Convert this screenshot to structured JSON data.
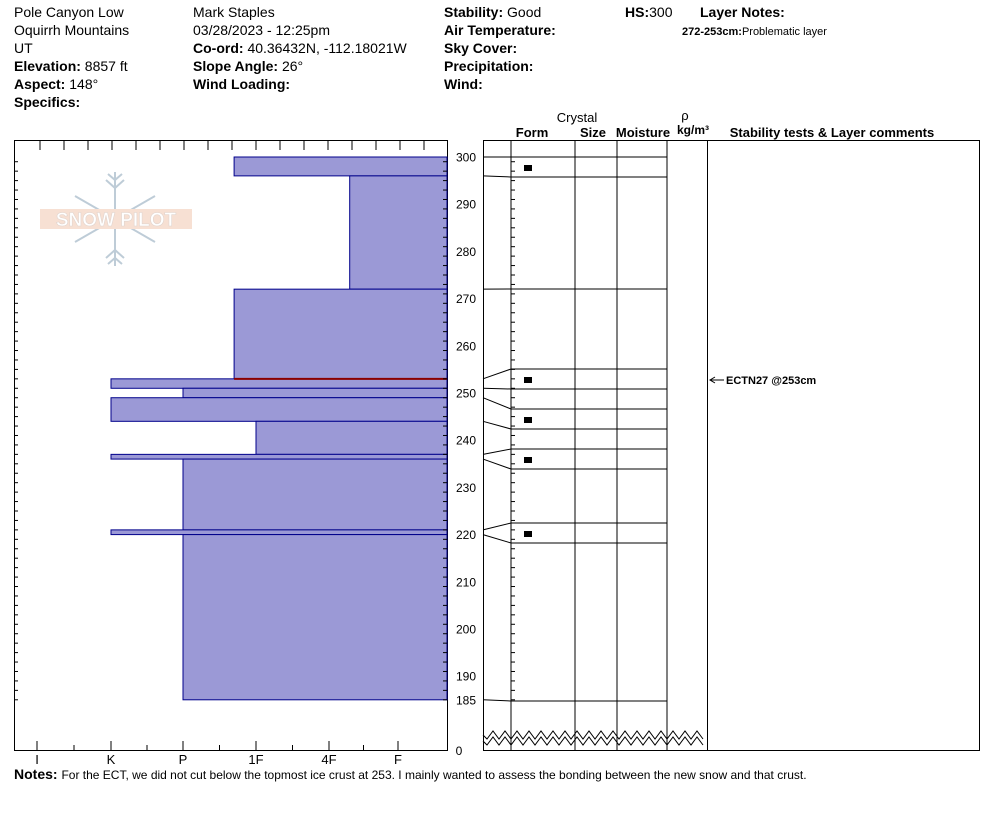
{
  "header": {
    "location": "Pole Canyon Low",
    "range": "Oquirrh Mountains",
    "state": "UT",
    "elevation_label": "Elevation:",
    "elevation": "8857 ft",
    "aspect_label": "Aspect:",
    "aspect": "148°",
    "specifics_label": "Specifics:",
    "observer": "Mark Staples",
    "datetime": "03/28/2023 - 12:25pm",
    "coord_label": "Co-ord:",
    "coord": "40.36432N, -112.18021W",
    "slope_label": "Slope Angle:",
    "slope": "26°",
    "wind_loading_label": "Wind Loading:",
    "stability_label": "Stability:",
    "stability": "Good",
    "air_temp_label": "Air Temperature:",
    "sky_label": "Sky Cover:",
    "precip_label": "Precipitation:",
    "wind_label": "Wind:",
    "hs_label": "HS:",
    "hs": "300",
    "layer_notes_label": "Layer Notes:",
    "layer_note_range": "272-253cm:",
    "layer_note_text": "Problematic layer"
  },
  "logo": {
    "text": "SNOW PILOT"
  },
  "columns": {
    "crystal": "Crystal",
    "form": "Form",
    "size": "Size",
    "moisture": "Moisture",
    "rho": "ρ",
    "density_unit": "kg/m³",
    "stability_comments": "Stability tests & Layer comments"
  },
  "notes": {
    "label": "Notes:",
    "text": "For the ECT, we did not cut below the topmost ice crust at 253. I mainly wanted to assess the bonding between the new snow and that crust."
  },
  "chart_data": {
    "type": "snow-profile",
    "y_axis": {
      "unit": "cm",
      "range": [
        185,
        300
      ],
      "ticks": [
        300,
        290,
        280,
        270,
        260,
        250,
        240,
        230,
        220,
        210,
        200,
        190,
        185
      ],
      "ground_label": "0"
    },
    "hardness_scale": [
      "I",
      "K",
      "P",
      "1F",
      "4F",
      "F"
    ],
    "hardness_layers": [
      {
        "top": 300,
        "bottom": 296,
        "hardness": "1F+"
      },
      {
        "top": 296,
        "bottom": 272,
        "hardness": "F+"
      },
      {
        "top": 272,
        "bottom": 253,
        "hardness": "1F+"
      },
      {
        "top": 253,
        "bottom": 251,
        "hardness": "K"
      },
      {
        "top": 251,
        "bottom": 249,
        "hardness": "P"
      },
      {
        "top": 249,
        "bottom": 244,
        "hardness": "K"
      },
      {
        "top": 244,
        "bottom": 237,
        "hardness": "1F"
      },
      {
        "top": 237,
        "bottom": 236,
        "hardness": "K"
      },
      {
        "top": 236,
        "bottom": 221,
        "hardness": "P"
      },
      {
        "top": 221,
        "bottom": 220,
        "hardness": "K"
      },
      {
        "top": 220,
        "bottom": 185,
        "hardness": "P"
      }
    ],
    "hardness_positions": {
      "F": 6,
      "F+": 5.3,
      "4F": 5,
      "1F+": 3.7,
      "1F": 4,
      "P": 3,
      "K": 2
    },
    "weak_layer_line": 253,
    "grain_form_markers": [
      298,
      253,
      245,
      236,
      221
    ],
    "stability_tests": [
      {
        "depth": 253,
        "label": "ECTN27 @253cm"
      }
    ],
    "colors": {
      "layer_fill": "#9b99d6",
      "layer_edge": "#00008b",
      "weak_line": "#8b0000"
    }
  }
}
